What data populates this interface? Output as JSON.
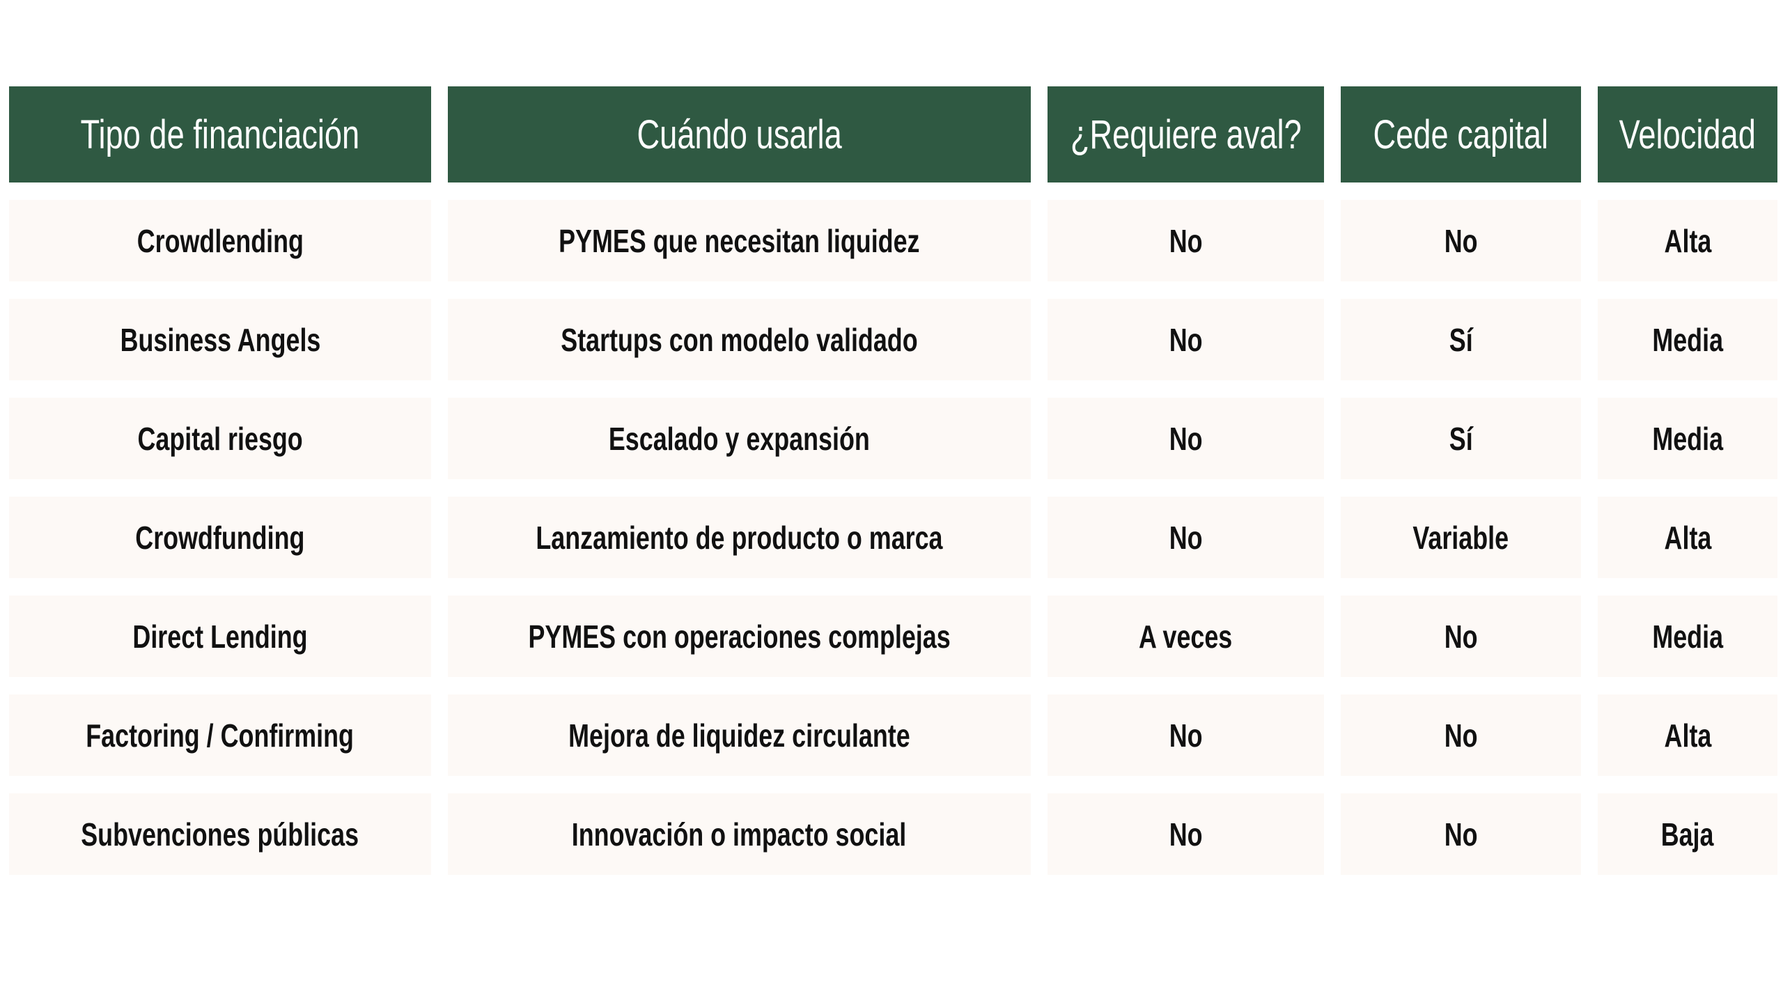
{
  "table": {
    "headers": [
      "Tipo de financiación",
      "Cuándo usarla",
      "¿Requiere aval?",
      "Cede capital",
      "Velocidad"
    ],
    "rows": [
      [
        "Crowdlending",
        "PYMES que necesitan liquidez",
        "No",
        "No",
        "Alta"
      ],
      [
        "Business Angels",
        "Startups con modelo validado",
        "No",
        "Sí",
        "Media"
      ],
      [
        "Capital riesgo",
        "Escalado y expansión",
        "No",
        "Sí",
        "Media"
      ],
      [
        "Crowdfunding",
        "Lanzamiento de producto o marca",
        "No",
        "Variable",
        "Alta"
      ],
      [
        "Direct Lending",
        "PYMES con operaciones complejas",
        "A veces",
        "No",
        "Media"
      ],
      [
        "Factoring / Confirming",
        "Mejora de liquidez circulante",
        "No",
        "No",
        "Alta"
      ],
      [
        "Subvenciones públicas",
        "Innovación o impacto social",
        "No",
        "No",
        "Baja"
      ]
    ]
  },
  "colors": {
    "header_bg": "#2f5942",
    "header_text": "#ffffff",
    "cell_bg": "#fdf9f6",
    "cell_text": "#111111"
  }
}
